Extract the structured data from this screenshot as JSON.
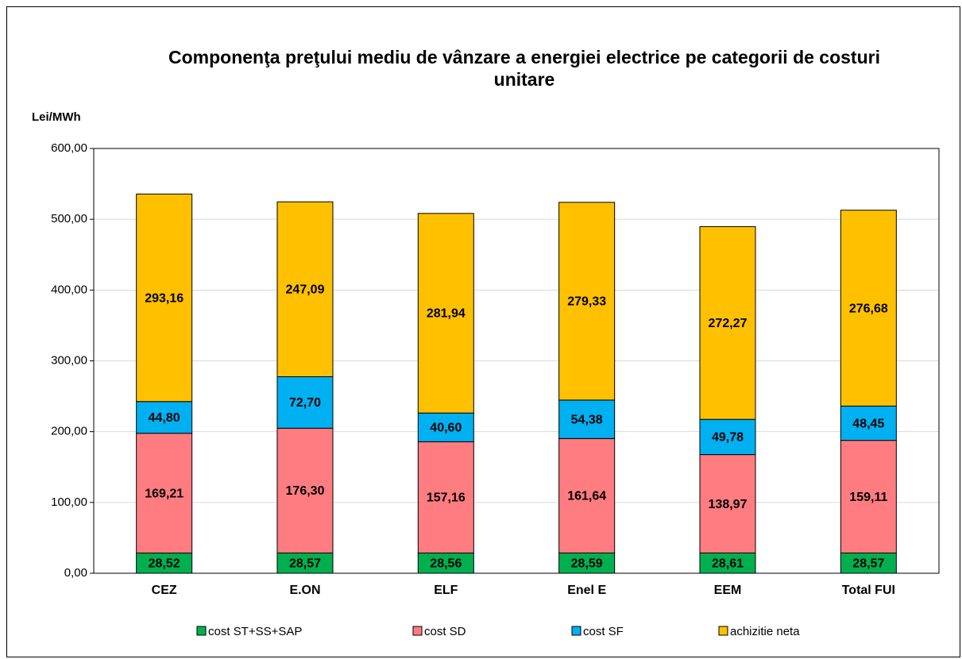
{
  "chart_data": {
    "type": "stacked_bar",
    "title": "Componenţa preţului mediu de vânzare a energiei electrice pe categorii de costuri unitare",
    "y_label": "Lei/MWh",
    "categories": [
      "CEZ",
      "E.ON",
      "ELF",
      "Enel E",
      "EEM",
      "Total FUI"
    ],
    "series": [
      {
        "name": "cost ST+SS+SAP",
        "color": "#00b050",
        "values": [
          28.52,
          28.57,
          28.56,
          28.59,
          28.61,
          28.57
        ],
        "value_labels": [
          "28,52",
          "28,57",
          "28,56",
          "28,59",
          "28,61",
          "28,57"
        ]
      },
      {
        "name": "cost SD",
        "color": "#ff7c80",
        "values": [
          169.21,
          176.3,
          157.16,
          161.64,
          138.97,
          159.11
        ],
        "value_labels": [
          "169,21",
          "176,30",
          "157,16",
          "161,64",
          "138,97",
          "159,11"
        ]
      },
      {
        "name": "cost SF",
        "color": "#00b0f0",
        "values": [
          44.8,
          72.7,
          40.6,
          54.38,
          49.78,
          48.45
        ],
        "value_labels": [
          "44,80",
          "72,70",
          "40,60",
          "54,38",
          "49,78",
          "48,45"
        ]
      },
      {
        "name": "achizitie neta",
        "color": "#ffc000",
        "values": [
          293.16,
          247.09,
          281.94,
          279.33,
          272.27,
          276.68
        ],
        "value_labels": [
          "293,16",
          "247,09",
          "281,94",
          "279,33",
          "272,27",
          "276,68"
        ]
      }
    ],
    "ylim": [
      0,
      600
    ],
    "yticks": [
      {
        "value": 0,
        "label": "0,00"
      },
      {
        "value": 100,
        "label": "100,00"
      },
      {
        "value": 200,
        "label": "200,00"
      },
      {
        "value": 300,
        "label": "300,00"
      },
      {
        "value": 400,
        "label": "400,00"
      },
      {
        "value": 500,
        "label": "500,00"
      },
      {
        "value": 600,
        "label": "600,00"
      }
    ],
    "grid": true,
    "legend": "bottom"
  }
}
